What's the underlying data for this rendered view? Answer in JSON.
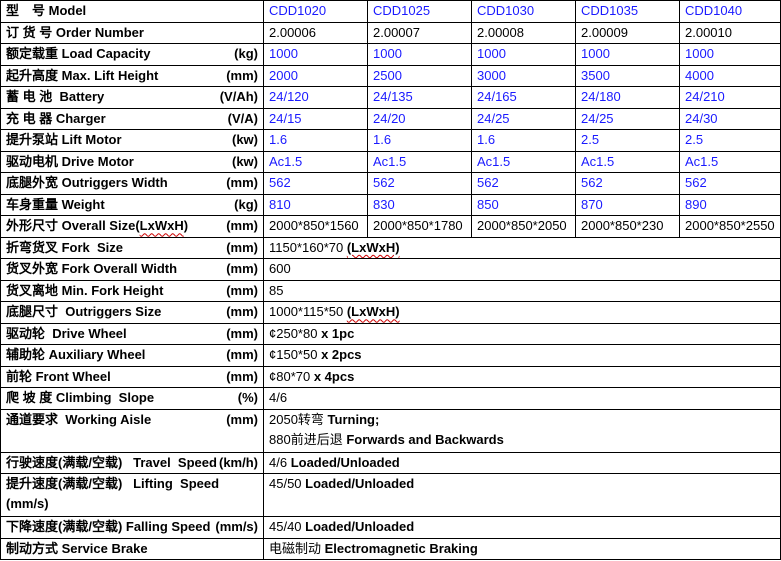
{
  "colors": {
    "value_blue": "#1a1aff",
    "text_black": "#000000",
    "border_black": "#000000",
    "squiggle_red": "#cc0000"
  },
  "table": {
    "label_col_width": 263,
    "value_col_widths": [
      104,
      104,
      104,
      104,
      101
    ],
    "models": [
      "CDD1020",
      "CDD1025",
      "CDD1030",
      "CDD1035",
      "CDD1040"
    ],
    "rows": [
      {
        "label": "型　号 Model",
        "unit": "",
        "values": [
          "CDD1020",
          "CDD1025",
          "CDD1030",
          "CDD1035",
          "CDD1040"
        ],
        "value_color": "blue"
      },
      {
        "label": "订 货 号 Order Number",
        "unit": "",
        "values": [
          "2.00006",
          "2.00007",
          "2.00008",
          "2.00009",
          "2.00010"
        ],
        "value_color": "black"
      },
      {
        "label": "额定载重 Load Capacity",
        "unit": "(kg)",
        "values": [
          "1000",
          "1000",
          "1000",
          "1000",
          "1000"
        ],
        "value_color": "blue"
      },
      {
        "label": "起升高度 Max. Lift Height",
        "unit": "(mm)",
        "values": [
          "2000",
          "2500",
          "3000",
          "3500",
          "4000"
        ],
        "value_color": "blue"
      },
      {
        "label": "蓄 电 池  Battery",
        "unit": "(V/Ah)",
        "values": [
          "24/120",
          "24/135",
          "24/165",
          "24/180",
          "24/210"
        ],
        "value_color": "blue"
      },
      {
        "label": "充 电 器 Charger",
        "unit": "(V/A)",
        "values": [
          "24/15",
          "24/20",
          "24/25",
          "24/25",
          "24/30"
        ],
        "value_color": "blue"
      },
      {
        "label": "提升泵站 Lift Motor",
        "unit": "(kw)",
        "values": [
          "1.6",
          "1.6",
          "1.6",
          "2.5",
          "2.5"
        ],
        "value_color": "blue"
      },
      {
        "label": "驱动电机 Drive Motor",
        "unit": "(kw)",
        "values": [
          "Ac1.5",
          "Ac1.5",
          "Ac1.5",
          "Ac1.5",
          "Ac1.5"
        ],
        "value_color": "blue"
      },
      {
        "label": "底腿外宽 Outriggers Width",
        "unit": "(mm)",
        "values": [
          "562",
          "562",
          "562",
          "562",
          "562"
        ],
        "value_color": "blue"
      },
      {
        "label": "车身重量 Weight",
        "unit": "(kg)",
        "values": [
          "810",
          "830",
          "850",
          "870",
          "890"
        ],
        "value_color": "blue"
      },
      {
        "label_parts": [
          {
            "t": "外形尺寸 Overall Size(",
            "sq": false
          },
          {
            "t": "LxWxH",
            "sq": true
          },
          {
            "t": ")",
            "sq": false
          }
        ],
        "unit": "(mm)",
        "values": [
          "2000*850*1560",
          "2000*850*1780",
          "2000*850*2050",
          "2000*850*230",
          "2000*850*2550"
        ],
        "value_color": "black"
      },
      {
        "label": "折弯货叉 Fork  Size",
        "unit": "(mm)",
        "span_lines": [
          [
            {
              "t": "1150*160*70 "
            },
            {
              "t": "(LxWxH)",
              "b": true,
              "sq": true
            }
          ]
        ]
      },
      {
        "label": "货叉外宽 Fork Overall Width",
        "unit": "(mm)",
        "span_lines": [
          [
            {
              "t": "600"
            }
          ]
        ]
      },
      {
        "label": "货叉离地 Min. Fork Height",
        "unit": "(mm)",
        "span_lines": [
          [
            {
              "t": "85"
            }
          ]
        ]
      },
      {
        "label": "底腿尺寸  Outriggers Size",
        "unit": "(mm)",
        "span_lines": [
          [
            {
              "t": "1000*115*50 "
            },
            {
              "t": "(LxWxH)",
              "b": true,
              "sq": true
            }
          ]
        ]
      },
      {
        "label": "驱动轮  Drive Wheel",
        "unit": "(mm)",
        "span_lines": [
          [
            {
              "t": "¢250*80 "
            },
            {
              "t": "x 1pc",
              "b": true
            }
          ]
        ]
      },
      {
        "label": "辅助轮 Auxiliary Wheel",
        "unit": "(mm)",
        "span_lines": [
          [
            {
              "t": "¢150*50 "
            },
            {
              "t": "x 2pcs",
              "b": true
            }
          ]
        ]
      },
      {
        "label": "前轮 Front Wheel",
        "unit": "(mm)",
        "span_lines": [
          [
            {
              "t": "¢80*70 "
            },
            {
              "t": "x 4pcs",
              "b": true
            }
          ]
        ]
      },
      {
        "label": "爬 坡 度 Climbing  Slope",
        "unit": "(%)",
        "span_lines": [
          [
            {
              "t": "4/6"
            }
          ]
        ]
      },
      {
        "label": "通道要求  Working Aisle",
        "unit": "(mm)",
        "tall": true,
        "span_lines": [
          [
            {
              "t": "2050转弯 "
            },
            {
              "t": "Turning;",
              "b": true
            }
          ],
          [
            {
              "t": "880前进后退 "
            },
            {
              "t": "Forwards and Backwards",
              "b": true
            }
          ]
        ]
      },
      {
        "label": "行驶速度(满载/空载)   Travel  Speed",
        "unit": "(km/h)",
        "span_lines": [
          [
            {
              "t": "4/6 "
            },
            {
              "t": "Loaded/Unloaded",
              "b": true
            }
          ]
        ]
      },
      {
        "label": "提升速度(满载/空载)   Lifting  Speed",
        "label_line2": "(mm/s)",
        "unit": "",
        "tall": true,
        "span_lines": [
          [
            {
              "t": "45/50 "
            },
            {
              "t": "Loaded/Unloaded",
              "b": true
            }
          ]
        ]
      },
      {
        "label": "下降速度(满载/空载) Falling Speed",
        "unit": "(mm/s)",
        "span_lines": [
          [
            {
              "t": "45/40 "
            },
            {
              "t": "Loaded/Unloaded",
              "b": true
            }
          ]
        ]
      },
      {
        "label": "制动方式 Service Brake",
        "unit": "",
        "span_lines": [
          [
            {
              "t": "电磁制动 "
            },
            {
              "t": "Electromagnetic Braking",
              "b": true
            }
          ]
        ]
      }
    ]
  }
}
